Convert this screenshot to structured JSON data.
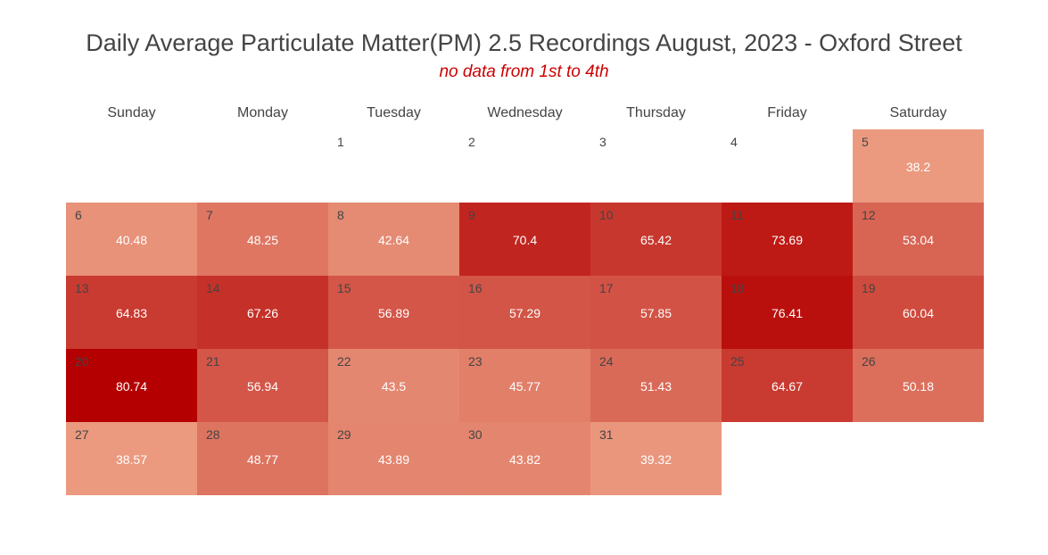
{
  "title": "Daily Average Particulate Matter(PM) 2.5 Recordings August, 2023 - Oxford Street",
  "subtitle": "no data from 1st to 4th",
  "chart_data": {
    "type": "heatmap",
    "layout": "calendar",
    "title": "Daily Average Particulate Matter(PM) 2.5 Recordings August, 2023 - Oxford Street",
    "subtitle": "no data from 1st to 4th",
    "weekdays": [
      "Sunday",
      "Monday",
      "Tuesday",
      "Wednesday",
      "Thursday",
      "Friday",
      "Saturday"
    ],
    "first_weekday_index": 2,
    "days_in_month": 31,
    "values": {
      "1": null,
      "2": null,
      "3": null,
      "4": null,
      "5": 38.2,
      "6": 40.48,
      "7": 48.25,
      "8": 42.64,
      "9": 70.4,
      "10": 65.42,
      "11": 73.69,
      "12": 53.04,
      "13": 64.83,
      "14": 67.26,
      "15": 56.89,
      "16": 57.29,
      "17": 57.85,
      "18": 76.41,
      "19": 60.04,
      "20": 80.74,
      "21": 56.94,
      "22": 43.5,
      "23": 45.77,
      "24": 51.43,
      "25": 64.67,
      "26": 50.18,
      "27": 38.57,
      "28": 48.77,
      "29": 43.89,
      "30": 43.82,
      "31": 39.32
    },
    "color_scale": {
      "low": "#eb9a80",
      "high": "#b40000"
    },
    "value_range": [
      38.2,
      80.74
    ]
  }
}
